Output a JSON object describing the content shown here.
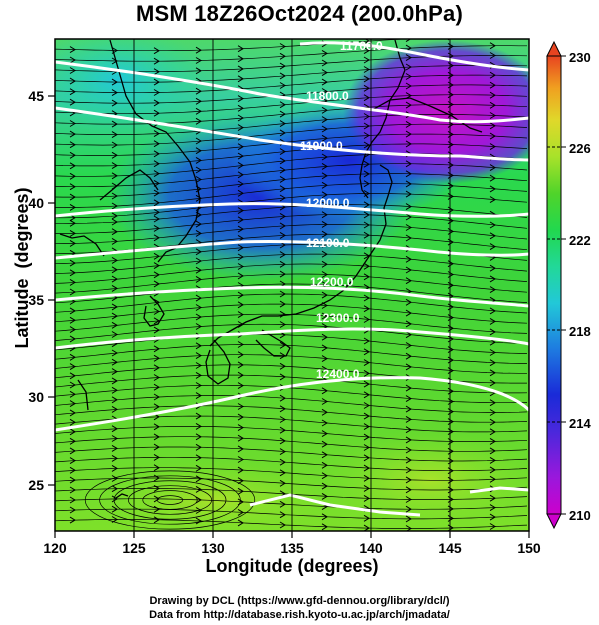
{
  "figure": {
    "title": "MSM 18Z26Oct2024 (200.0hPa)",
    "xlabel": "Longitude (degrees)",
    "ylabel": "Latitude  (degrees)",
    "credit_line1": "Drawing by DCL (https://www.gfd-dennou.org/library/dcl/)",
    "credit_line2": "Data from http://database.rish.kyoto-u.ac.jp/arch/jmadata/"
  },
  "axes": {
    "x_ticks": [
      "120",
      "125",
      "130",
      "135",
      "140",
      "145",
      "150"
    ],
    "y_ticks": [
      "25",
      "30",
      "35",
      "40",
      "45"
    ],
    "xlim": [
      120,
      150
    ],
    "ylim": [
      22.4,
      47.6
    ]
  },
  "colorbar": {
    "tick_labels": [
      "230",
      "226",
      "222",
      "218",
      "214",
      "210"
    ],
    "range": [
      210,
      230
    ],
    "colors": [
      "#cc00cc",
      "#7a1ee0",
      "#1a2ad8",
      "#1e7be0",
      "#22d8d8",
      "#22d86a",
      "#3ed024",
      "#a8e22a",
      "#d8e82a",
      "#f0a020",
      "#e84420"
    ]
  },
  "contours": [
    {
      "label": "11700.0"
    },
    {
      "label": "11800.0"
    },
    {
      "label": "11900.0"
    },
    {
      "label": "12000.0"
    },
    {
      "label": "12100.0"
    },
    {
      "label": "12200.0"
    },
    {
      "label": "12300.0"
    },
    {
      "label": "12400.0"
    }
  ]
}
